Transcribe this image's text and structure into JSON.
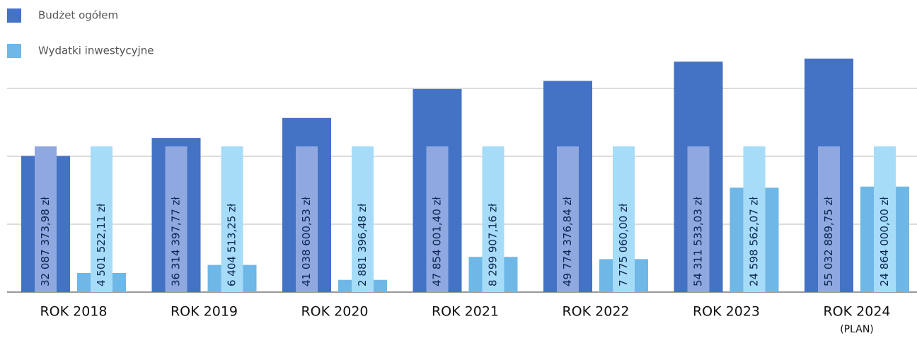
{
  "chart_data": {
    "type": "bar",
    "categories": [
      "ROK 2018",
      "ROK 2019",
      "ROK 2020",
      "ROK 2021",
      "ROK 2022",
      "ROK 2023",
      "ROK 2024"
    ],
    "category_notes": [
      null,
      null,
      null,
      null,
      null,
      null,
      "(PLAN)"
    ],
    "series": [
      {
        "name": "Budżet ogółem",
        "color": "#4472c4",
        "values": [
          32087373.98,
          36314397.77,
          41038600.53,
          47854001.4,
          49774376.84,
          54311533.03,
          55032889.75
        ],
        "value_labels": [
          "32 087 373,98 zł",
          "36 314 397,77 zł",
          "41 038 600,53 zł",
          "47 854 001,40 zł",
          "49 774 376,84 zł",
          "54 311 533,03 zł",
          "55 032 889,75 zł"
        ]
      },
      {
        "name": "Wydatki inwestycyjne",
        "color": "#6fb7e6",
        "values": [
          4501522.11,
          6404513.25,
          2881396.48,
          8299907.16,
          7775060.0,
          24598562.07,
          24864000.0
        ],
        "value_labels": [
          "4 501 522,11 zł",
          "6 404 513,25 zł",
          "2 881 396,48 zł",
          "8 299 907,16 zł",
          "7 775 060,00 zł",
          "24 598 562,07 zł",
          "24 864 000,00 zł"
        ]
      }
    ],
    "ylim": [
      0,
      60000000
    ],
    "yticks": [
      0,
      16000000,
      32000000,
      48000000
    ],
    "grid": true
  }
}
